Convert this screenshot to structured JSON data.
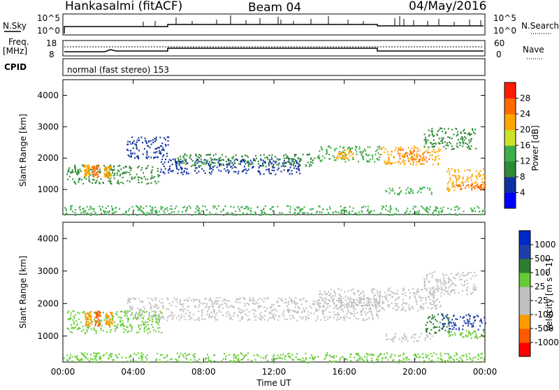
{
  "header": {
    "title": "Hankasalmi (fitACF)",
    "beam": "Beam 04",
    "date": "04/May/2016"
  },
  "nsky_panel": {
    "left_label": "N.Sky",
    "left_ticks": [
      "10^5",
      "10^0"
    ],
    "right_ticks": [
      "10^5",
      "10^0"
    ],
    "right_label": "N.Search"
  },
  "freq_panel": {
    "left_label_line1": "Freq.",
    "left_label_line2": "[MHz]",
    "left_ticks": [
      "18",
      "8"
    ],
    "right_ticks": [
      "60",
      "0"
    ],
    "right_label": "Nave"
  },
  "cpid_panel": {
    "label": "CPID",
    "mode_text": "normal (fast stereo) 153"
  },
  "chart_data": [
    {
      "type": "heatmap",
      "title": "",
      "xlabel": "",
      "ylabel": "Slant Range [km]",
      "xlim": [
        0,
        24
      ],
      "ylim": [
        200,
        4500
      ],
      "y_ticks": [
        "1000",
        "2000",
        "3000",
        "4000"
      ],
      "colorbar": {
        "label": "Power [dB]",
        "ticks": [
          "28",
          "24",
          "20",
          "16",
          "12",
          "8",
          "4"
        ],
        "colors": [
          "#0000ff",
          "#1030a0",
          "#2f8a35",
          "#3cae4a",
          "#cde12a",
          "#ffa500",
          "#ff6a00",
          "#ff1b00"
        ]
      },
      "regions": [
        {
          "t0": 0.2,
          "t1": 5.6,
          "r0": 1200,
          "r1": 1800,
          "level": 2
        },
        {
          "t0": 1.2,
          "t1": 1.5,
          "r0": 1450,
          "r1": 1800,
          "level": 5
        },
        {
          "t0": 1.6,
          "t1": 2.0,
          "r0": 1400,
          "r1": 1800,
          "level": 6
        },
        {
          "t0": 2.3,
          "t1": 2.7,
          "r0": 1400,
          "r1": 1750,
          "level": 5
        },
        {
          "t0": 3.6,
          "t1": 6.0,
          "r0": 2000,
          "r1": 2700,
          "level": 1
        },
        {
          "t0": 5.5,
          "t1": 13.5,
          "r0": 1500,
          "r1": 2000,
          "level": 1
        },
        {
          "t0": 6.5,
          "t1": 14.5,
          "r0": 1750,
          "r1": 2150,
          "level": 2
        },
        {
          "t0": 14.5,
          "t1": 18.0,
          "r0": 1900,
          "r1": 2400,
          "level": 3
        },
        {
          "t0": 15.5,
          "t1": 16.5,
          "r0": 2000,
          "r1": 2300,
          "level": 5
        },
        {
          "t0": 18.0,
          "t1": 21.5,
          "r0": 1800,
          "r1": 2400,
          "level": 5
        },
        {
          "t0": 19.0,
          "t1": 20.8,
          "r0": 1900,
          "r1": 2300,
          "level": 6
        },
        {
          "t0": 20.5,
          "t1": 23.5,
          "r0": 2300,
          "r1": 3000,
          "level": 2
        },
        {
          "t0": 18.3,
          "t1": 21.0,
          "r0": 850,
          "r1": 1100,
          "level": 3
        },
        {
          "t0": 21.8,
          "t1": 24.0,
          "r0": 950,
          "r1": 1700,
          "level": 5
        },
        {
          "t0": 22.3,
          "t1": 24.0,
          "r0": 1000,
          "r1": 1200,
          "level": 6
        },
        {
          "t0": 0.0,
          "t1": 24.0,
          "r0": 200,
          "r1": 500,
          "level": 3
        }
      ]
    },
    {
      "type": "heatmap",
      "title": "",
      "xlabel": "Time UT",
      "ylabel": "Slant Range [km]",
      "xlim": [
        0,
        24
      ],
      "ylim": [
        200,
        4500
      ],
      "x_ticks": [
        "00:00",
        "04:00",
        "08:00",
        "12:00",
        "16:00",
        "20:00",
        "00:00"
      ],
      "y_ticks": [
        "1000",
        "2000",
        "3000",
        "4000"
      ],
      "colorbar": {
        "label": "Velocity [m s^-1]",
        "ticks": [
          "1000",
          "500",
          "100",
          "25",
          "-25",
          "-100",
          "-500",
          "-1000"
        ],
        "colors": [
          "#ff0000",
          "#ff5a00",
          "#ff9a00",
          "#c0c0c0",
          "#c0c0c0",
          "#66cc33",
          "#2e7d32",
          "#1e3faa",
          "#0028c8"
        ]
      },
      "regions": [
        {
          "t0": 0.2,
          "t1": 5.6,
          "r0": 1100,
          "r1": 1800,
          "level": 5
        },
        {
          "t0": 1.2,
          "t1": 1.6,
          "r0": 1300,
          "r1": 1800,
          "level": 2
        },
        {
          "t0": 1.8,
          "t1": 2.1,
          "r0": 1300,
          "r1": 1800,
          "level": 1
        },
        {
          "t0": 2.4,
          "t1": 2.8,
          "r0": 1350,
          "r1": 1750,
          "level": 2
        },
        {
          "t0": 3.6,
          "t1": 18.0,
          "r0": 1500,
          "r1": 2200,
          "level": 3
        },
        {
          "t0": 14.5,
          "t1": 18.0,
          "r0": 1900,
          "r1": 2500,
          "level": 3
        },
        {
          "t0": 18.0,
          "t1": 21.5,
          "r0": 1800,
          "r1": 2500,
          "level": 4
        },
        {
          "t0": 20.5,
          "t1": 23.5,
          "r0": 2300,
          "r1": 3000,
          "level": 3
        },
        {
          "t0": 20.6,
          "t1": 22.0,
          "r0": 1100,
          "r1": 1700,
          "level": 6
        },
        {
          "t0": 21.5,
          "t1": 24.0,
          "r0": 1200,
          "r1": 1700,
          "level": 7
        },
        {
          "t0": 21.8,
          "t1": 24.0,
          "r0": 950,
          "r1": 1200,
          "level": 5
        },
        {
          "t0": 18.3,
          "t1": 21.0,
          "r0": 850,
          "r1": 1100,
          "level": 4
        },
        {
          "t0": 0.0,
          "t1": 24.0,
          "r0": 200,
          "r1": 500,
          "level": 5
        }
      ]
    }
  ]
}
